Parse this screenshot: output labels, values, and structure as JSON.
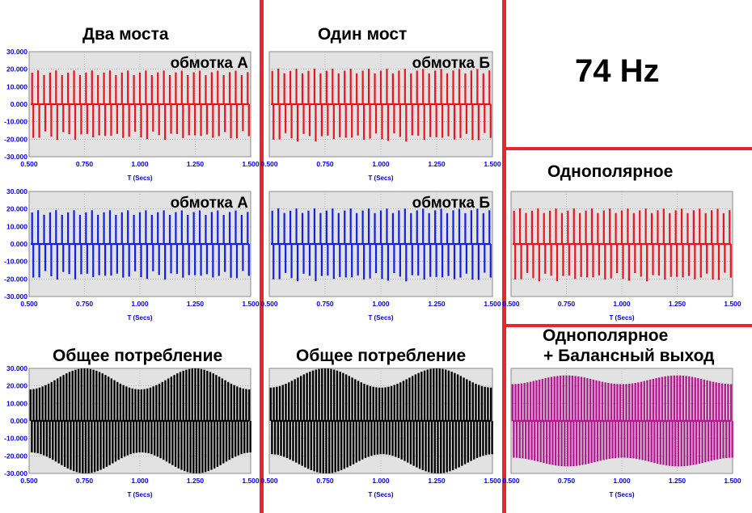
{
  "headings": {
    "two_bridges": "Два моста",
    "one_bridge": "Один мост",
    "frequency": "74 Hz",
    "unipolar": "Однополярное",
    "unipolar_balanced_line1": "Однополярное",
    "unipolar_balanced_line2": "+ Балансный выход"
  },
  "colors": {
    "divider": "#e8262e",
    "plot_bg": "#e2e2e2",
    "axis_text": "#0000ee",
    "red_series": "#e8141e",
    "blue_series": "#1020e6",
    "black_series": "#000000",
    "magenta_series": "#b5198f"
  },
  "chart_data": [
    {
      "id": "two-a",
      "type": "line",
      "overlay_title": "обмотка А",
      "xlabel": "T (Secs)",
      "xlim": [
        0.5,
        1.5
      ],
      "ylim": [
        -30,
        30
      ],
      "x_ticks": [
        "0.500",
        "0.750",
        "1.000",
        "1.250",
        "1.500"
      ],
      "y_ticks": [
        "30.000",
        "20.000",
        "10.000",
        "0.000",
        "-10.000",
        "-20.000",
        "-30.000"
      ],
      "color": "red",
      "waveform": "bipolar-pulse",
      "pulses": 37,
      "peak": 18,
      "peak_mod": 1.5
    },
    {
      "id": "one-b",
      "type": "line",
      "overlay_title": "обмотка Б",
      "xlabel": "T (Secs)",
      "xlim": [
        0.5,
        1.5
      ],
      "ylim": [
        -30,
        30
      ],
      "x_ticks": [
        "0.500",
        "0.750",
        "1.000",
        "1.250",
        "1.500"
      ],
      "y_ticks": [],
      "color": "red",
      "waveform": "bipolar-pulse",
      "pulses": 37,
      "peak": 19,
      "peak_mod": 1.5
    },
    {
      "id": "two-a-blue",
      "type": "line",
      "overlay_title": "обмотка А",
      "xlabel": "T (Secs)",
      "xlim": [
        0.5,
        1.5
      ],
      "ylim": [
        -30,
        30
      ],
      "x_ticks": [
        "0.500",
        "0.750",
        "1.000",
        "1.250",
        "1.500"
      ],
      "y_ticks": [
        "30.000",
        "20.000",
        "10.000",
        "0.000",
        "-10.000",
        "-20.000",
        "-30.000"
      ],
      "color": "blue",
      "waveform": "bipolar-pulse",
      "pulses": 37,
      "peak": 18,
      "peak_mod": 1.5
    },
    {
      "id": "one-b-blue",
      "type": "line",
      "overlay_title": "обмотка Б",
      "xlabel": "T (Secs)",
      "xlim": [
        0.5,
        1.5
      ],
      "ylim": [
        -30,
        30
      ],
      "x_ticks": [
        "0.500",
        "0.750",
        "1.000",
        "1.250",
        "1.500"
      ],
      "y_ticks": [],
      "color": "blue",
      "waveform": "bipolar-pulse",
      "pulses": 37,
      "peak": 19,
      "peak_mod": 1.5
    },
    {
      "id": "two-total",
      "type": "line",
      "overlay_title": "",
      "xlabel": "T (Secs)",
      "xlim": [
        0.5,
        1.5
      ],
      "ylim": [
        -30,
        30
      ],
      "x_ticks": [
        "0.500",
        "0.750",
        "1.000",
        "1.250",
        "1.500"
      ],
      "y_ticks": [
        "30.000",
        "20.000",
        "10.000",
        "0.000",
        "-10.000",
        "-20.000",
        "-30.000"
      ],
      "color": "black",
      "waveform": "beat-envelope",
      "pulses": 74,
      "peak_min": 18,
      "peak_max": 30,
      "beat_period": 0.5,
      "beat_peak_at": 0.75
    },
    {
      "id": "one-total",
      "type": "line",
      "overlay_title": "",
      "xlabel": "T (Secs)",
      "xlim": [
        0.5,
        1.5
      ],
      "ylim": [
        -30,
        30
      ],
      "x_ticks": [
        "0.500",
        "0.750",
        "1.000",
        "1.250",
        "1.500"
      ],
      "y_ticks": [],
      "color": "black",
      "waveform": "beat-envelope",
      "pulses": 74,
      "peak_min": 19,
      "peak_max": 30,
      "beat_period": 0.5,
      "beat_peak_at": 0.75
    },
    {
      "id": "unipolar",
      "type": "line",
      "overlay_title": "",
      "xlabel": "T (Secs)",
      "xlim": [
        0.5,
        1.5
      ],
      "ylim": [
        -30,
        30
      ],
      "x_ticks": [
        "0.500",
        "0.750",
        "1.000",
        "1.250",
        "1.500"
      ],
      "y_ticks": [],
      "color": "red",
      "waveform": "bipolar-pulse",
      "pulses": 37,
      "peak": 19,
      "peak_mod": 1.5
    },
    {
      "id": "unipolar-balanced",
      "type": "line",
      "overlay_title": "",
      "xlabel": "T (Secs)",
      "xlim": [
        0.5,
        1.5
      ],
      "ylim": [
        -30,
        30
      ],
      "x_ticks": [
        "0.500",
        "0.750",
        "1.000",
        "1.250",
        "1.500"
      ],
      "y_ticks": [],
      "color": "magenta",
      "waveform": "beat-envelope",
      "pulses": 74,
      "peak_min": 21,
      "peak_max": 26,
      "beat_period": 0.5,
      "beat_peak_at": 0.75
    }
  ],
  "footer_labels": {
    "totals": "Общее потребление"
  }
}
